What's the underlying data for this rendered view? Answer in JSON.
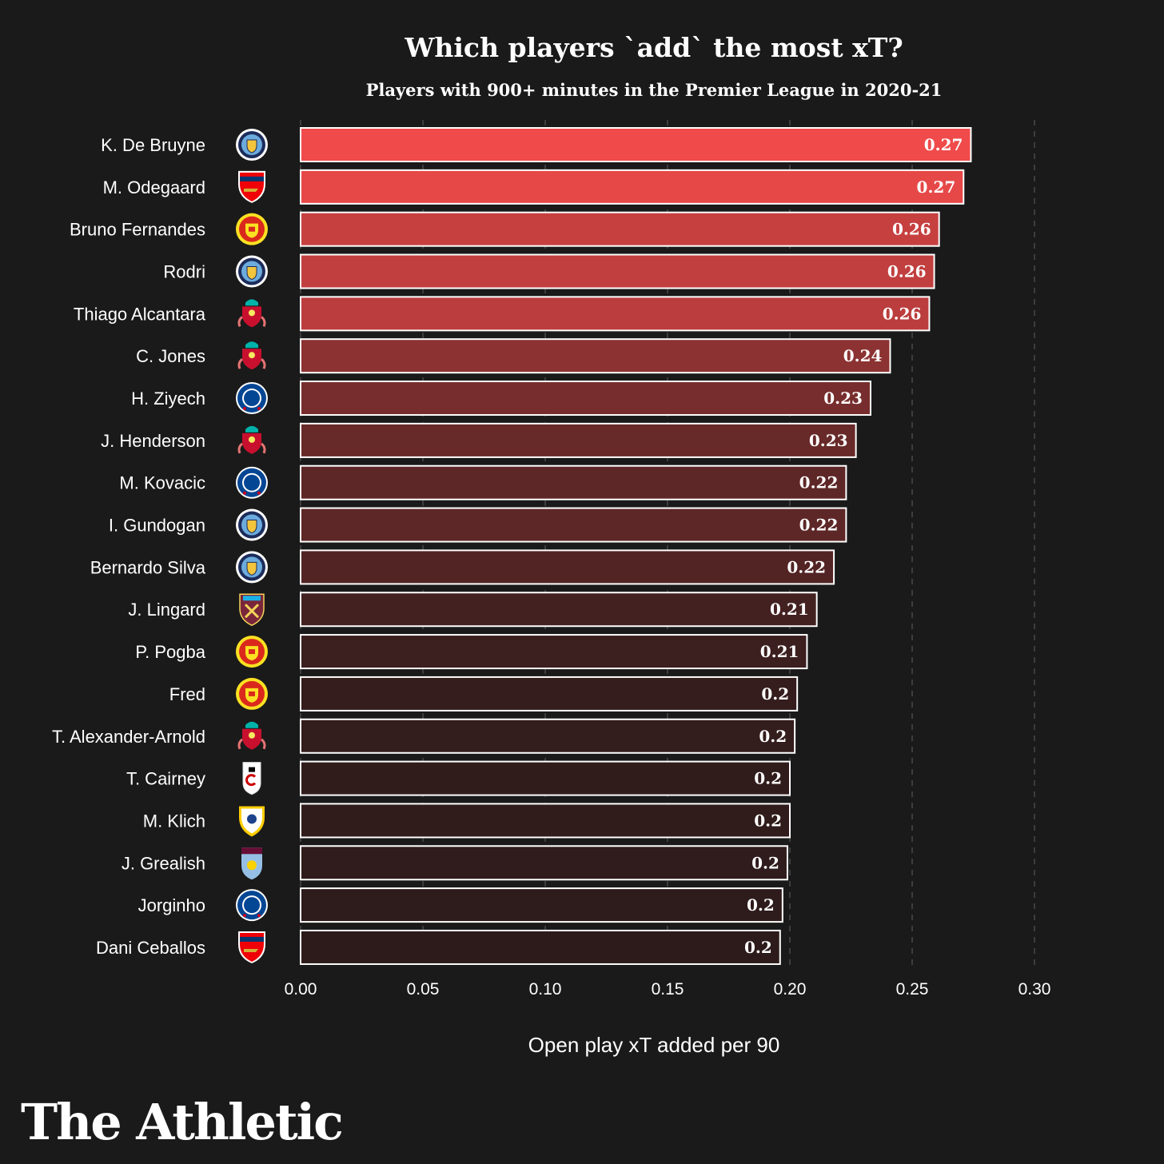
{
  "brand": {
    "name": "The Athletic"
  },
  "chart_data": {
    "type": "bar",
    "orientation": "horizontal",
    "title": "Which players `add` the most xT?",
    "subtitle": "Players with 900+ minutes in the Premier League in 2020-21",
    "xlabel": "Open play xT added per 90",
    "ylabel": "",
    "xlim": [
      0,
      0.3
    ],
    "xticks": [
      "0.00",
      "0.05",
      "0.10",
      "0.15",
      "0.20",
      "0.25",
      "0.30"
    ],
    "grid": "vertical-dashed",
    "color_scale": {
      "low": "#2d1b1b",
      "high": "#f04a4a"
    },
    "categories": [
      "K. De Bruyne",
      "M. Odegaard",
      "Bruno Fernandes",
      "Rodri",
      "Thiago Alcantara",
      "C. Jones",
      "H. Ziyech",
      "J. Henderson",
      "M. Kovacic",
      "I. Gundogan",
      "Bernardo Silva",
      "J. Lingard",
      "P. Pogba",
      "Fred",
      "T. Alexander-Arnold",
      "T. Cairney",
      "M. Klich",
      "J. Grealish",
      "Jorginho",
      "Dani Ceballos"
    ],
    "values": [
      0.274,
      0.271,
      0.261,
      0.259,
      0.257,
      0.241,
      0.233,
      0.227,
      0.223,
      0.223,
      0.218,
      0.211,
      0.207,
      0.203,
      0.202,
      0.2,
      0.2,
      0.199,
      0.197,
      0.196
    ],
    "value_labels": [
      "0.27",
      "0.27",
      "0.26",
      "0.26",
      "0.26",
      "0.24",
      "0.23",
      "0.23",
      "0.22",
      "0.22",
      "0.22",
      "0.21",
      "0.21",
      "0.2",
      "0.2",
      "0.2",
      "0.2",
      "0.2",
      "0.2",
      "0.2"
    ],
    "clubs": [
      "Man City",
      "Arsenal",
      "Man United",
      "Man City",
      "Liverpool",
      "Liverpool",
      "Chelsea",
      "Liverpool",
      "Chelsea",
      "Man City",
      "Man City",
      "West Ham",
      "Man United",
      "Man United",
      "Liverpool",
      "Fulham",
      "Leeds",
      "Aston Villa",
      "Chelsea",
      "Arsenal"
    ],
    "club_badges": {
      "Man City": {
        "icon": "man-city-badge-icon",
        "color": "#6cabdd"
      },
      "Arsenal": {
        "icon": "arsenal-badge-icon",
        "color": "#ef0107"
      },
      "Man United": {
        "icon": "man-united-badge-icon",
        "color": "#da291c"
      },
      "Liverpool": {
        "icon": "liverpool-badge-icon",
        "color": "#c8102e"
      },
      "Chelsea": {
        "icon": "chelsea-badge-icon",
        "color": "#034694"
      },
      "West Ham": {
        "icon": "west-ham-badge-icon",
        "color": "#7a263a"
      },
      "Fulham": {
        "icon": "fulham-badge-icon",
        "color": "#ffffff"
      },
      "Leeds": {
        "icon": "leeds-badge-icon",
        "color": "#1d428a"
      },
      "Aston Villa": {
        "icon": "aston-villa-badge-icon",
        "color": "#95bfe5"
      }
    }
  }
}
